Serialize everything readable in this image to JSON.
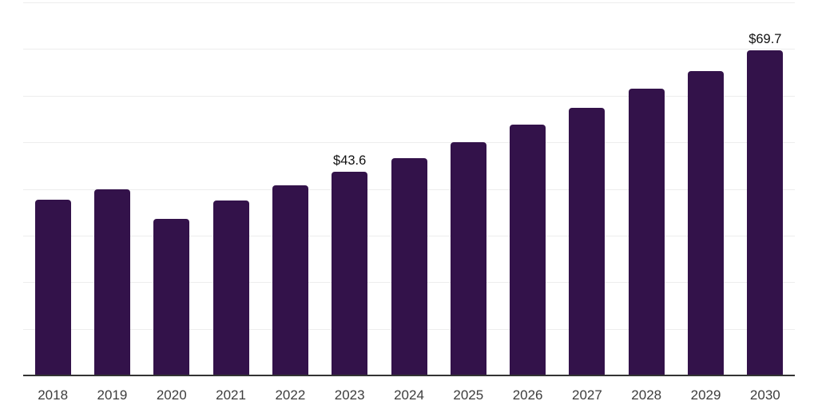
{
  "chart_data": {
    "type": "bar",
    "title": "",
    "xlabel": "",
    "ylabel": "",
    "categories": [
      "2018",
      "2019",
      "2020",
      "2021",
      "2022",
      "2023",
      "2024",
      "2025",
      "2026",
      "2027",
      "2028",
      "2029",
      "2030"
    ],
    "values": [
      37.7,
      39.9,
      33.5,
      37.5,
      40.8,
      43.6,
      46.6,
      50.0,
      53.8,
      57.4,
      61.5,
      65.2,
      69.7
    ],
    "data_labels": [
      "",
      "",
      "",
      "",
      "",
      "$43.6",
      "",
      "",
      "",
      "",
      "",
      "",
      "$69.7"
    ],
    "currency_prefix": "$",
    "ylim": [
      0,
      80
    ],
    "grid": "horizontal",
    "gridline_interval": 10,
    "legend": "none",
    "colors": {
      "bar": "#33124a",
      "gridline": "#ededed",
      "axis_line": "#333333",
      "tick_label": "#3d3d3d",
      "value_label": "#111111",
      "background": "#ffffff"
    }
  }
}
